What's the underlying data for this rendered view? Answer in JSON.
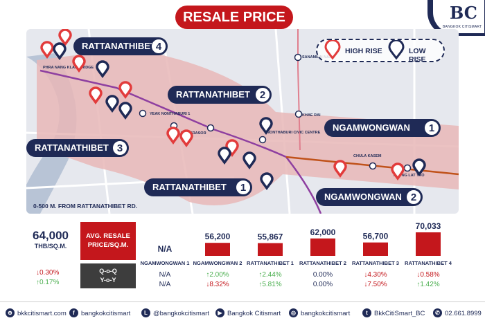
{
  "header": {
    "title": "RESALE PRICE"
  },
  "logo": {
    "mark": "BC",
    "text": "BANGKOK CITISMART"
  },
  "map": {
    "labels": [
      {
        "name": "RATTANATHIBET",
        "num": "4"
      },
      {
        "name": "RATTANATHIBET",
        "num": "2"
      },
      {
        "name": "RATTANATHIBET",
        "num": "3"
      },
      {
        "name": "RATTANATHIBET",
        "num": "1"
      },
      {
        "name": "NGAMWONGWAN",
        "num": "1"
      },
      {
        "name": "NGAMWONGWAN",
        "num": "2"
      }
    ],
    "legend": {
      "high": "HIGH RISE",
      "low": "LOW RISE"
    },
    "stations": [
      "PHRA NANG KLAO BRIDGE",
      "YEAK NONTHABURI 1",
      "BANG KRASOR",
      "NONTHABURI CIVIC CENTRE",
      "CHULA KASEM",
      "KLONG LAT YAO",
      "BANG KRASOR",
      "KHAE RAI",
      "SANAMBIN NAM"
    ],
    "footnote": "0-500 M. FROM RATTANATHIBET RD.",
    "colors": {
      "corridor": "#e7b7b7",
      "purple_line": "#8e3fa0",
      "brown_line": "#c0521a",
      "high_pin": "#e23b3b",
      "low_pin": "#1f2a56"
    }
  },
  "summary": {
    "value": "64,000",
    "unit": "THB/SQ.M.",
    "qoq": "↓0.30%",
    "yoy": "↑0.17%",
    "avg_label": "AVG. RESALE PRICE/SQ.M.",
    "qoq_label": "Q-o-Q",
    "yoy_label": "Y-o-Y"
  },
  "chart_data": {
    "type": "bar",
    "categories": [
      "NGAMWONGWAN 1",
      "NGAMWONGWAN 2",
      "RATTANATHIBET 1",
      "RATTANATHIBET 2",
      "RATTANATHIBET 3",
      "RATTANATHIBET 4"
    ],
    "values": [
      null,
      56200,
      55867,
      62000,
      56700,
      70033
    ],
    "value_labels": [
      "N/A",
      "56,200",
      "55,867",
      "62,000",
      "56,700",
      "70,033"
    ],
    "qoq": [
      "N/A",
      "↑2.00%",
      "↑2.44%",
      "0.00%",
      "↓4.30%",
      "↓0.58%"
    ],
    "yoy": [
      "N/A",
      "↓8.32%",
      "↑5.81%",
      "0.00%",
      "↓7.50%",
      "↑1.42%"
    ],
    "bar_color": "#c4171c",
    "up_color": "#4caf50",
    "down_color": "#c4171c"
  },
  "footer": [
    {
      "icon": "globe-icon",
      "glyph": "⊕",
      "text": "bkkcitismart.com"
    },
    {
      "icon": "facebook-icon",
      "glyph": "f",
      "text": "bangkokcitismart"
    },
    {
      "icon": "line-icon",
      "glyph": "L",
      "text": "@bangkokcitismart"
    },
    {
      "icon": "youtube-icon",
      "glyph": "▶",
      "text": "Bangkok Citismart"
    },
    {
      "icon": "instagram-icon",
      "glyph": "◎",
      "text": "bangkokcitismart"
    },
    {
      "icon": "twitter-icon",
      "glyph": "t",
      "text": "BkkCitiSmart_BC"
    },
    {
      "icon": "phone-icon",
      "glyph": "✆",
      "text": "02.661.8999"
    }
  ]
}
